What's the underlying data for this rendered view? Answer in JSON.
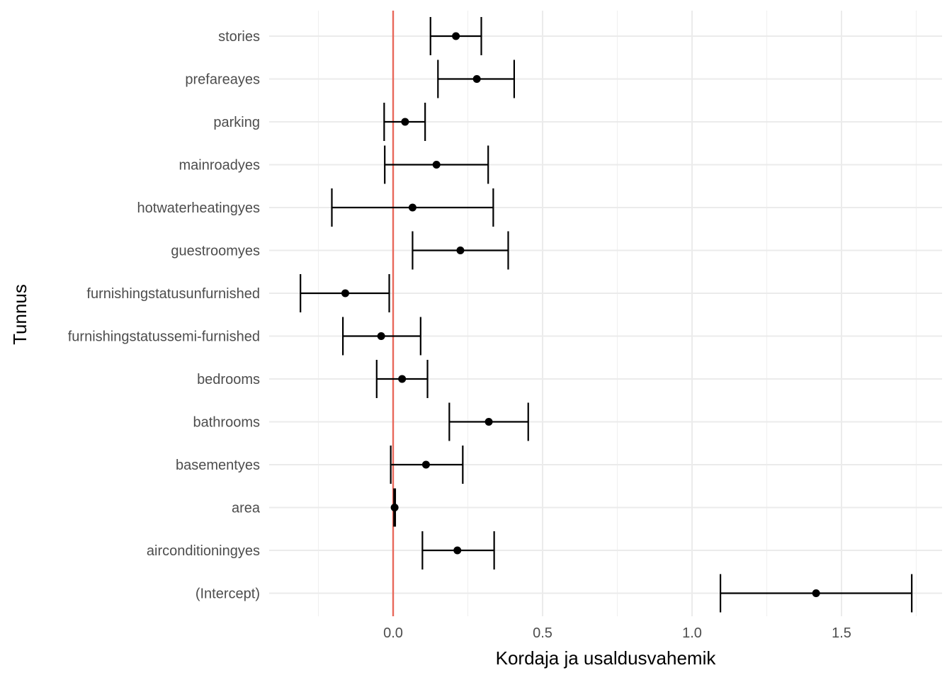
{
  "chart_data": {
    "type": "errorbar",
    "xlabel": "Kordaja ja usaldusvahemik",
    "ylabel": "Tunnus",
    "xlim": [
      -0.42,
      1.83
    ],
    "x_ticks": [
      0.0,
      0.5,
      1.0,
      1.5
    ],
    "x_tick_labels": [
      "0.0",
      "0.5",
      "1.0",
      "1.5"
    ],
    "grid": true,
    "reference_line": {
      "x": 0,
      "color": "#e8685a"
    },
    "categories": [
      "stories",
      "prefareayes",
      "parking",
      "mainroadyes",
      "hotwaterheatingyes",
      "guestroomyes",
      "furnishingstatusunfurnished",
      "furnishingstatussemi-furnished",
      "bedrooms",
      "bathrooms",
      "basementyes",
      "area",
      "airconditioningyes",
      "(Intercept)"
    ],
    "estimate": [
      0.21,
      0.28,
      0.04,
      0.145,
      0.065,
      0.225,
      -0.16,
      -0.04,
      0.03,
      0.32,
      0.11,
      0.005,
      0.215,
      1.415
    ],
    "lower": [
      0.125,
      0.15,
      -0.03,
      -0.028,
      -0.205,
      0.065,
      -0.31,
      -0.168,
      -0.055,
      0.188,
      -0.008,
      0.003,
      0.098,
      1.095
    ],
    "upper": [
      0.295,
      0.405,
      0.107,
      0.318,
      0.335,
      0.385,
      -0.013,
      0.092,
      0.115,
      0.452,
      0.233,
      0.007,
      0.338,
      1.735
    ]
  }
}
